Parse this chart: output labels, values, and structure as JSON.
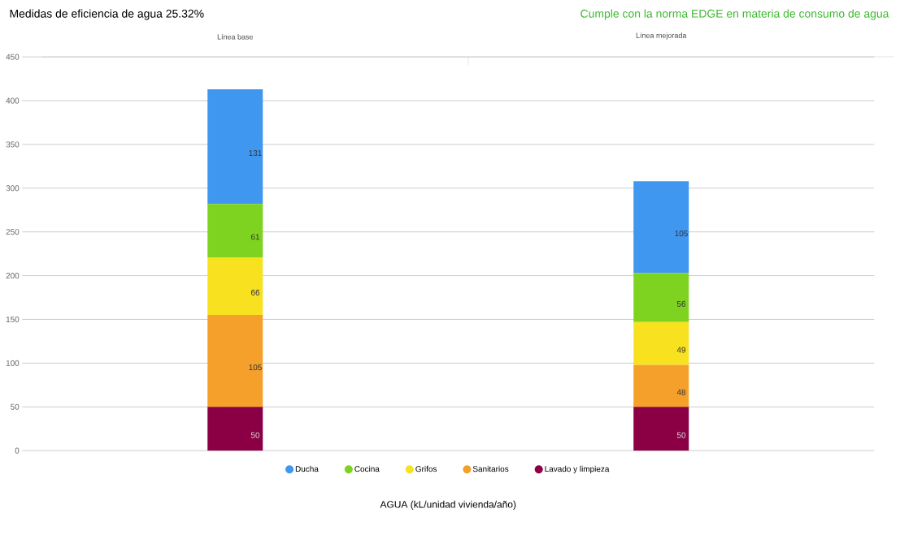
{
  "chart_data": {
    "type": "bar",
    "stacked": true,
    "title": "Medidas de eficiencia de agua  25.32%",
    "subtitle": "Cumple con la norma EDGE en materia de consumo de agua",
    "xlabel": "AGUA (kL/unidad vivienda/año)",
    "categories": [
      "Línea base",
      "Línea mejorada"
    ],
    "series": [
      {
        "name": "Lavado y limpieza",
        "color": "#8b0045",
        "values": [
          50,
          50
        ]
      },
      {
        "name": "Sanitarios",
        "color": "#f5a02a",
        "values": [
          105,
          48
        ]
      },
      {
        "name": "Grifos",
        "color": "#f8e11f",
        "values": [
          66,
          49
        ]
      },
      {
        "name": "Cocina",
        "color": "#7ed321",
        "values": [
          61,
          56
        ]
      },
      {
        "name": "Ducha",
        "color": "#3f97f0",
        "values": [
          131,
          105
        ]
      }
    ],
    "ylim": [
      0,
      450
    ],
    "yticks": [
      0,
      50,
      100,
      150,
      200,
      250,
      300,
      350,
      400,
      450
    ],
    "grid": "y",
    "legend": "bottom",
    "data_labels": true
  }
}
